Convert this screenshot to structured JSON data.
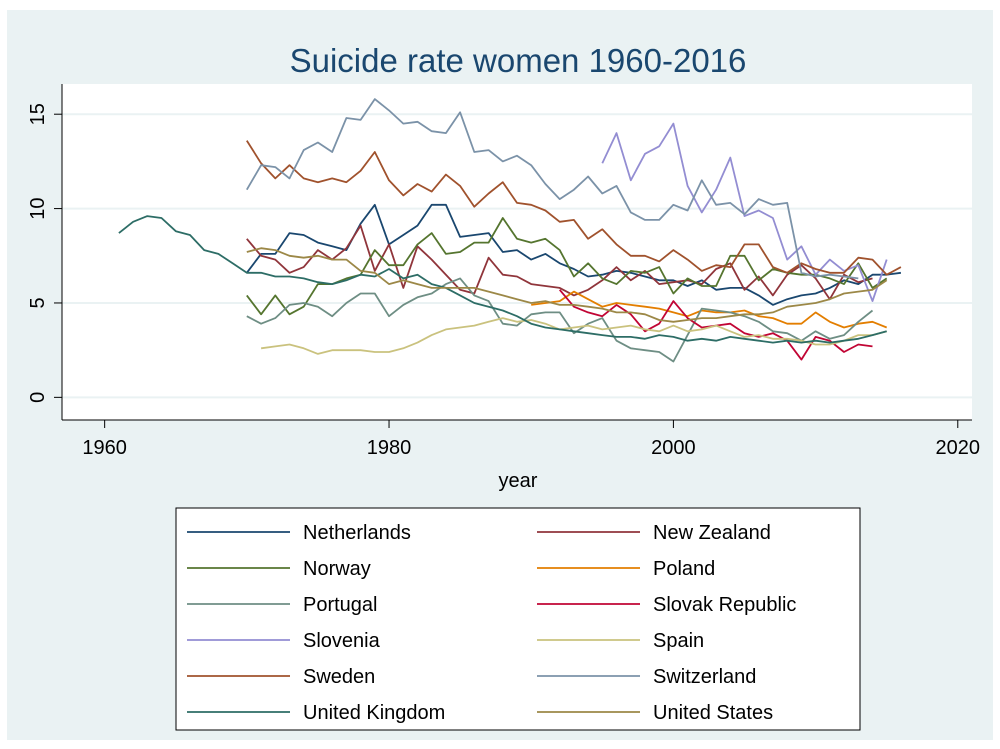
{
  "chart_data": {
    "type": "line",
    "title": "Suicide rate women 1960-2016",
    "xlabel": "year",
    "ylabel": "",
    "xlim": [
      1957,
      2021
    ],
    "ylim": [
      -1.2,
      16.6
    ],
    "xticks": [
      1960,
      1980,
      2000,
      2020
    ],
    "yticks": [
      0,
      5,
      10,
      15
    ],
    "grid": true,
    "legend_position": "bottom",
    "series": [
      {
        "name": "Netherlands",
        "color": "#1a476f",
        "x": [
          1970,
          1971,
          1972,
          1973,
          1974,
          1975,
          1976,
          1977,
          1978,
          1979,
          1980,
          1981,
          1982,
          1983,
          1984,
          1985,
          1986,
          1987,
          1988,
          1989,
          1990,
          1991,
          1992,
          1993,
          1994,
          1995,
          1996,
          1997,
          1998,
          1999,
          2000,
          2001,
          2002,
          2003,
          2004,
          2005,
          2006,
          2007,
          2008,
          2009,
          2010,
          2011,
          2012,
          2013,
          2014,
          2015,
          2016
        ],
        "y": [
          6.6,
          7.6,
          7.6,
          8.7,
          8.6,
          8.2,
          8.0,
          7.8,
          9.2,
          10.2,
          8.1,
          8.6,
          9.1,
          10.2,
          10.2,
          8.5,
          8.6,
          8.7,
          7.7,
          7.8,
          7.3,
          7.6,
          7.1,
          6.8,
          6.4,
          6.5,
          6.7,
          6.6,
          6.4,
          6.2,
          6.2,
          5.9,
          6.2,
          5.7,
          5.8,
          5.8,
          5.4,
          4.9,
          5.2,
          5.4,
          5.5,
          5.8,
          6.2,
          6.0,
          6.5,
          6.5,
          6.6
        ]
      },
      {
        "name": "New Zealand",
        "color": "#90353b",
        "x": [
          1970,
          1971,
          1972,
          1973,
          1974,
          1975,
          1976,
          1977,
          1978,
          1979,
          1980,
          1981,
          1982,
          1983,
          1984,
          1985,
          1986,
          1987,
          1988,
          1989,
          1990,
          1991,
          1992,
          1993,
          1994,
          1995,
          1996,
          1997,
          1998,
          1999,
          2000,
          2001,
          2002,
          2003,
          2004,
          2005,
          2006,
          2007,
          2008,
          2009,
          2010,
          2011,
          2012,
          2013,
          2014
        ],
        "y": [
          8.4,
          7.5,
          7.3,
          6.6,
          6.9,
          7.8,
          7.3,
          7.9,
          9.1,
          6.7,
          8.1,
          5.8,
          8.0,
          7.3,
          6.5,
          5.7,
          5.5,
          7.4,
          6.5,
          6.4,
          6.0,
          5.9,
          5.8,
          5.4,
          5.7,
          6.2,
          6.9,
          6.2,
          6.7,
          6.0,
          6.1,
          6.2,
          6.0,
          6.8,
          7.1,
          5.7,
          6.4,
          5.4,
          6.5,
          7.0,
          6.3,
          5.2,
          6.5,
          6.1,
          6.3
        ]
      },
      {
        "name": "Norway",
        "color": "#55752f",
        "x": [
          1970,
          1971,
          1972,
          1973,
          1974,
          1975,
          1976,
          1977,
          1978,
          1979,
          1980,
          1981,
          1982,
          1983,
          1984,
          1985,
          1986,
          1987,
          1988,
          1989,
          1990,
          1991,
          1992,
          1993,
          1994,
          1995,
          1996,
          1997,
          1998,
          1999,
          2000,
          2001,
          2002,
          2003,
          2004,
          2005,
          2006,
          2007,
          2008,
          2009,
          2010,
          2011,
          2012,
          2013,
          2014,
          2015
        ],
        "y": [
          5.4,
          4.4,
          5.4,
          4.4,
          4.8,
          6.0,
          6.0,
          6.3,
          6.5,
          7.8,
          7.0,
          7.0,
          8.1,
          8.7,
          7.6,
          7.7,
          8.2,
          8.2,
          9.5,
          8.4,
          8.2,
          8.4,
          7.8,
          6.4,
          7.1,
          6.3,
          6.0,
          6.7,
          6.6,
          6.9,
          5.5,
          6.3,
          5.9,
          5.9,
          7.5,
          7.5,
          6.2,
          6.8,
          6.6,
          6.5,
          6.5,
          6.3,
          6.0,
          7.1,
          5.8,
          6.3
        ]
      },
      {
        "name": "Poland",
        "color": "#e37e00",
        "x": [
          1990,
          1991,
          1992,
          1993,
          1994,
          1995,
          1996,
          1997,
          1998,
          1999,
          2000,
          2001,
          2002,
          2003,
          2004,
          2005,
          2006,
          2007,
          2008,
          2009,
          2010,
          2011,
          2012,
          2013,
          2014,
          2015
        ],
        "y": [
          4.9,
          5.0,
          5.1,
          5.6,
          5.2,
          4.8,
          5.0,
          4.9,
          4.8,
          4.7,
          4.5,
          4.3,
          4.6,
          4.5,
          4.5,
          4.6,
          4.3,
          4.2,
          3.9,
          3.9,
          4.5,
          4.0,
          3.7,
          3.9,
          4.0,
          3.7
        ]
      },
      {
        "name": "Portugal",
        "color": "#6e8e84",
        "x": [
          1970,
          1971,
          1972,
          1973,
          1974,
          1975,
          1976,
          1977,
          1978,
          1979,
          1980,
          1981,
          1982,
          1983,
          1984,
          1985,
          1986,
          1987,
          1988,
          1989,
          1990,
          1991,
          1992,
          1993,
          1994,
          1995,
          1996,
          1997,
          1998,
          1999,
          2000,
          2001,
          2002,
          2003,
          2004,
          2005,
          2006,
          2007,
          2008,
          2009,
          2010,
          2011,
          2012,
          2013,
          2014
        ],
        "y": [
          4.3,
          3.9,
          4.2,
          4.9,
          5.0,
          4.8,
          4.3,
          5.0,
          5.5,
          5.5,
          4.3,
          4.9,
          5.3,
          5.5,
          6.0,
          6.3,
          5.4,
          5.1,
          3.9,
          3.8,
          4.4,
          4.5,
          4.5,
          3.4,
          3.9,
          4.2,
          3.0,
          2.6,
          2.5,
          2.4,
          1.9,
          3.3,
          4.7,
          4.6,
          4.5,
          4.3,
          4.0,
          3.5,
          3.4,
          3.0,
          3.5,
          3.1,
          3.3,
          4.0,
          4.6
        ]
      },
      {
        "name": "Slovak Republic",
        "color": "#c10534",
        "x": [
          1992,
          1993,
          1994,
          1995,
          1996,
          1997,
          1998,
          1999,
          2000,
          2001,
          2002,
          2003,
          2004,
          2005,
          2006,
          2007,
          2008,
          2009,
          2010,
          2011,
          2012,
          2013,
          2014
        ],
        "y": [
          5.7,
          4.8,
          4.5,
          4.3,
          4.9,
          4.4,
          3.5,
          3.9,
          5.1,
          4.2,
          3.7,
          3.8,
          3.9,
          3.4,
          3.2,
          3.4,
          3.0,
          2.0,
          3.2,
          3.0,
          2.4,
          2.8,
          2.7
        ]
      },
      {
        "name": "Slovenia",
        "color": "#938dd2",
        "x": [
          1995,
          1996,
          1997,
          1998,
          1999,
          2000,
          2001,
          2002,
          2003,
          2004,
          2005,
          2006,
          2007,
          2008,
          2009,
          2010,
          2011,
          2012,
          2013,
          2014,
          2015
        ],
        "y": [
          12.4,
          14.0,
          11.5,
          12.9,
          13.3,
          14.5,
          11.2,
          9.8,
          11.0,
          12.7,
          9.6,
          9.9,
          9.5,
          7.3,
          8.0,
          6.5,
          7.3,
          6.7,
          7.0,
          5.1,
          7.3
        ]
      },
      {
        "name": "Spain",
        "color": "#cac27e",
        "x": [
          1971,
          1972,
          1973,
          1974,
          1975,
          1976,
          1977,
          1978,
          1979,
          1980,
          1981,
          1982,
          1983,
          1984,
          1985,
          1986,
          1987,
          1988,
          1989,
          1990,
          1991,
          1992,
          1993,
          1994,
          1995,
          1996,
          1997,
          1998,
          1999,
          2000,
          2001,
          2002,
          2003,
          2004,
          2005,
          2006,
          2007,
          2008,
          2009,
          2010,
          2011,
          2012,
          2013,
          2014,
          2015
        ],
        "y": [
          2.6,
          2.7,
          2.8,
          2.6,
          2.3,
          2.5,
          2.5,
          2.5,
          2.4,
          2.4,
          2.6,
          2.9,
          3.3,
          3.6,
          3.7,
          3.8,
          4.0,
          4.2,
          4.0,
          4.1,
          3.9,
          3.6,
          3.7,
          3.8,
          3.6,
          3.7,
          3.8,
          3.6,
          3.5,
          3.8,
          3.5,
          3.6,
          3.8,
          3.5,
          3.2,
          3.3,
          3.1,
          3.1,
          3.0,
          2.8,
          2.8,
          3.0,
          3.3,
          3.3,
          3.5
        ]
      },
      {
        "name": "Sweden",
        "color": "#a0522d",
        "x": [
          1970,
          1971,
          1972,
          1973,
          1974,
          1975,
          1976,
          1977,
          1978,
          1979,
          1980,
          1981,
          1982,
          1983,
          1984,
          1985,
          1986,
          1987,
          1988,
          1989,
          1990,
          1991,
          1992,
          1993,
          1994,
          1995,
          1996,
          1997,
          1998,
          1999,
          2000,
          2001,
          2002,
          2003,
          2004,
          2005,
          2006,
          2007,
          2008,
          2009,
          2010,
          2011,
          2012,
          2013,
          2014,
          2015,
          2016
        ],
        "y": [
          13.6,
          12.4,
          11.6,
          12.3,
          11.6,
          11.4,
          11.6,
          11.4,
          12.0,
          13.0,
          11.5,
          10.7,
          11.3,
          10.9,
          11.8,
          11.2,
          10.1,
          10.8,
          11.4,
          10.3,
          10.2,
          9.9,
          9.3,
          9.4,
          8.4,
          8.9,
          8.1,
          7.5,
          7.5,
          7.2,
          7.8,
          7.3,
          6.7,
          7.0,
          6.9,
          8.1,
          8.1,
          6.9,
          6.6,
          7.1,
          6.8,
          6.6,
          6.6,
          7.4,
          7.3,
          6.5,
          6.9
        ]
      },
      {
        "name": "Switzerland",
        "color": "#7b92a8",
        "x": [
          1970,
          1971,
          1972,
          1973,
          1974,
          1975,
          1976,
          1977,
          1978,
          1979,
          1980,
          1981,
          1982,
          1983,
          1984,
          1985,
          1986,
          1987,
          1988,
          1989,
          1990,
          1991,
          1992,
          1993,
          1994,
          1995,
          1996,
          1997,
          1998,
          1999,
          2000,
          2001,
          2002,
          2003,
          2004,
          2005,
          2006,
          2007,
          2008,
          2009,
          2010,
          2011,
          2012,
          2013
        ],
        "y": [
          11.0,
          12.3,
          12.2,
          11.6,
          13.1,
          13.5,
          13.0,
          14.8,
          14.7,
          15.8,
          15.2,
          14.5,
          14.6,
          14.1,
          14.0,
          15.1,
          13.0,
          13.1,
          12.5,
          12.8,
          12.3,
          11.3,
          10.5,
          11.0,
          11.7,
          10.8,
          11.2,
          9.8,
          9.4,
          9.4,
          10.2,
          9.9,
          11.5,
          10.2,
          10.3,
          9.7,
          10.5,
          10.2,
          10.3,
          6.6,
          6.4,
          6.5,
          6.4,
          6.3
        ]
      },
      {
        "name": "United Kingdom",
        "color": "#2d6d66",
        "x": [
          1961,
          1962,
          1963,
          1964,
          1965,
          1966,
          1967,
          1968,
          1969,
          1970,
          1971,
          1972,
          1973,
          1974,
          1975,
          1976,
          1977,
          1978,
          1979,
          1980,
          1981,
          1982,
          1983,
          1984,
          1985,
          1986,
          1987,
          1988,
          1989,
          1990,
          1991,
          1992,
          1993,
          1994,
          1995,
          1996,
          1997,
          1998,
          1999,
          2000,
          2001,
          2002,
          2003,
          2004,
          2005,
          2006,
          2007,
          2008,
          2009,
          2010,
          2011,
          2012,
          2013,
          2014,
          2015
        ],
        "y": [
          8.7,
          9.3,
          9.6,
          9.5,
          8.8,
          8.6,
          7.8,
          7.6,
          7.1,
          6.6,
          6.6,
          6.4,
          6.4,
          6.3,
          6.1,
          6.0,
          6.2,
          6.5,
          6.4,
          6.8,
          6.3,
          6.5,
          6.0,
          5.8,
          5.4,
          5.0,
          4.8,
          4.6,
          4.3,
          3.9,
          3.7,
          3.6,
          3.5,
          3.4,
          3.3,
          3.2,
          3.2,
          3.1,
          3.3,
          3.2,
          3.0,
          3.1,
          3.0,
          3.2,
          3.1,
          3.0,
          2.9,
          3.0,
          2.9,
          3.0,
          2.9,
          3.0,
          3.1,
          3.3,
          3.5
        ]
      },
      {
        "name": "United States",
        "color": "#9c8847",
        "x": [
          1970,
          1971,
          1972,
          1973,
          1974,
          1975,
          1976,
          1977,
          1978,
          1979,
          1980,
          1981,
          1982,
          1983,
          1984,
          1985,
          1986,
          1987,
          1988,
          1989,
          1990,
          1991,
          1992,
          1993,
          1994,
          1995,
          1996,
          1997,
          1998,
          1999,
          2000,
          2001,
          2002,
          2003,
          2004,
          2005,
          2006,
          2007,
          2008,
          2009,
          2010,
          2011,
          2012,
          2013,
          2014,
          2015
        ],
        "y": [
          7.7,
          7.9,
          7.8,
          7.5,
          7.4,
          7.5,
          7.3,
          7.3,
          6.7,
          6.6,
          6.0,
          6.2,
          6.0,
          5.8,
          5.8,
          5.8,
          5.8,
          5.6,
          5.4,
          5.2,
          5.0,
          5.1,
          4.9,
          4.9,
          4.8,
          4.7,
          4.5,
          4.5,
          4.4,
          4.1,
          4.0,
          4.1,
          4.2,
          4.2,
          4.3,
          4.4,
          4.4,
          4.5,
          4.8,
          4.9,
          5.0,
          5.2,
          5.5,
          5.6,
          5.7,
          6.2
        ]
      }
    ]
  }
}
